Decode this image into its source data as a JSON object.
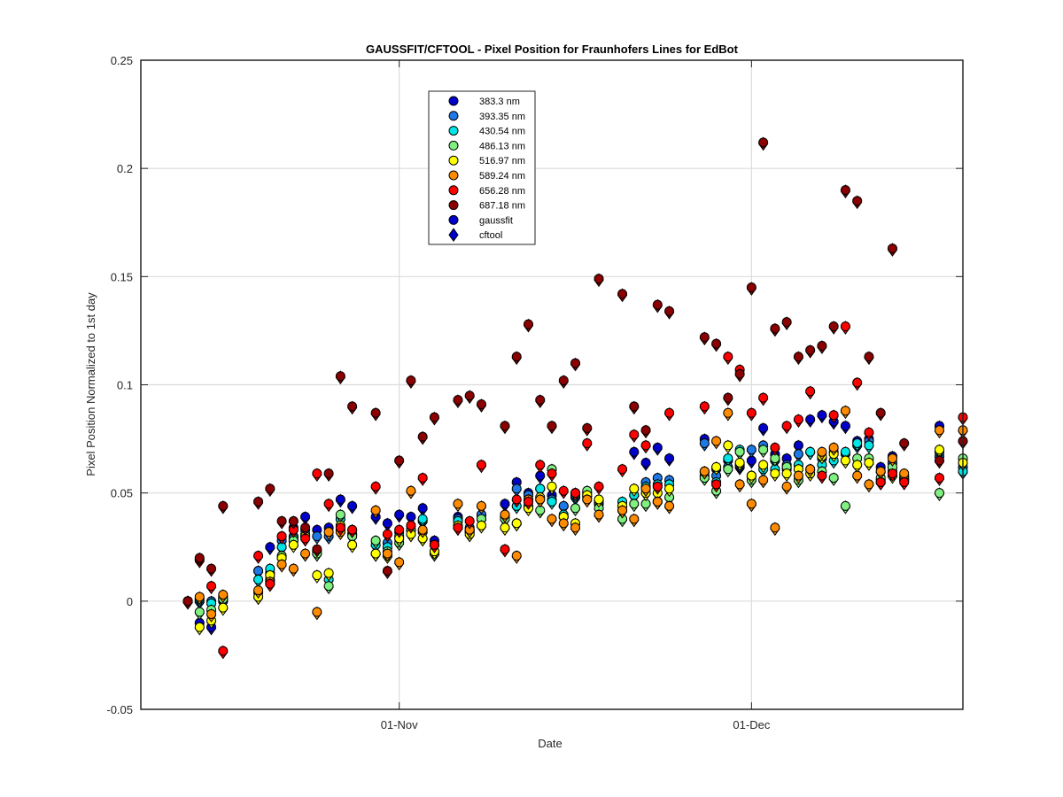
{
  "chart_data": {
    "type": "scatter",
    "title": "GAUSSFIT/CFTOOL - Pixel Position for Fraunhofers Lines for EdBot",
    "xlabel": "Date",
    "ylabel": "Pixel Position Normalized to 1st day",
    "x_unit": "date",
    "xlim": [
      "2016-10-10",
      "2016-12-19"
    ],
    "ylim": [
      -0.05,
      0.25
    ],
    "x_ticks": [
      {
        "date": "2016-11-01",
        "label": "01-Nov"
      },
      {
        "date": "2016-12-01",
        "label": "01-Dec"
      }
    ],
    "y_ticks": [
      "-0.05",
      "0",
      "0.05",
      "0.1",
      "0.15",
      "0.2",
      "0.25"
    ],
    "grid": true,
    "legend_position": "top-left-center",
    "legend": [
      {
        "label": "383.3 nm",
        "color": "#0000cc",
        "marker": "circle"
      },
      {
        "label": "393.35 nm",
        "color": "#1e78e6",
        "marker": "circle"
      },
      {
        "label": "430.54 nm",
        "color": "#00e6e6",
        "marker": "circle"
      },
      {
        "label": "486.13 nm",
        "color": "#80f080",
        "marker": "circle"
      },
      {
        "label": "516.97 nm",
        "color": "#ffff00",
        "marker": "circle"
      },
      {
        "label": "589.24 nm",
        "color": "#ff8c00",
        "marker": "circle"
      },
      {
        "label": "656.28 nm",
        "color": "#ff0000",
        "marker": "circle"
      },
      {
        "label": "687.18 nm",
        "color": "#8b0000",
        "marker": "circle"
      },
      {
        "label": "gaussfit",
        "color": "#0000cc",
        "marker": "circle"
      },
      {
        "label": "cftool",
        "color": "#0000cc",
        "marker": "diamond"
      }
    ],
    "dates": [
      "2016-10-14",
      "2016-10-15",
      "2016-10-16",
      "2016-10-17",
      "2016-10-20",
      "2016-10-21",
      "2016-10-22",
      "2016-10-23",
      "2016-10-24",
      "2016-10-25",
      "2016-10-26",
      "2016-10-27",
      "2016-10-28",
      "2016-10-30",
      "2016-10-31",
      "2016-11-01",
      "2016-11-02",
      "2016-11-03",
      "2016-11-04",
      "2016-11-06",
      "2016-11-07",
      "2016-11-08",
      "2016-11-10",
      "2016-11-11",
      "2016-11-12",
      "2016-11-13",
      "2016-11-14",
      "2016-11-15",
      "2016-11-16",
      "2016-11-17",
      "2016-11-18",
      "2016-11-20",
      "2016-11-21",
      "2016-11-22",
      "2016-11-23",
      "2016-11-24",
      "2016-11-27",
      "2016-11-28",
      "2016-11-29",
      "2016-11-30",
      "2016-12-01",
      "2016-12-02",
      "2016-12-03",
      "2016-12-04",
      "2016-12-05",
      "2016-12-06",
      "2016-12-07",
      "2016-12-08",
      "2016-12-09",
      "2016-12-10",
      "2016-12-11",
      "2016-12-12",
      "2016-12-13",
      "2016-12-14",
      "2016-12-17",
      "2016-12-19"
    ],
    "series": [
      {
        "name": "383.3 nm",
        "values": [
          0.0,
          -0.01,
          -0.012,
          0.002,
          0.014,
          0.025,
          0.03,
          0.034,
          0.039,
          0.033,
          0.034,
          0.047,
          0.044,
          0.039,
          0.036,
          0.04,
          0.039,
          0.043,
          0.028,
          0.039,
          0.033,
          0.04,
          0.045,
          0.055,
          0.05,
          0.058,
          0.049,
          0.044,
          0.05,
          0.048,
          0.046,
          0.044,
          0.069,
          0.064,
          0.071,
          0.066,
          0.075,
          0.061,
          0.065,
          0.062,
          0.065,
          0.08,
          0.068,
          0.066,
          0.072,
          0.084,
          0.086,
          0.083,
          0.081,
          0.074,
          0.075,
          0.062,
          0.067,
          0.056,
          0.081,
          0.06
        ]
      },
      {
        "name": "393.35 nm",
        "values": [
          0.0,
          0.0,
          0.0,
          0.0,
          0.014,
          0.013,
          0.028,
          0.03,
          0.033,
          0.03,
          0.03,
          0.033,
          0.031,
          0.022,
          0.027,
          0.032,
          0.033,
          0.037,
          0.026,
          0.038,
          0.034,
          0.04,
          0.04,
          0.052,
          0.049,
          0.052,
          0.047,
          0.044,
          0.048,
          0.049,
          0.045,
          0.042,
          0.049,
          0.055,
          0.057,
          0.056,
          0.073,
          0.058,
          0.062,
          0.063,
          0.07,
          0.072,
          0.065,
          0.063,
          0.068,
          0.069,
          0.066,
          0.069,
          0.068,
          0.072,
          0.074,
          0.06,
          0.064,
          0.057,
          0.067,
          0.062
        ]
      },
      {
        "name": "430.54 nm",
        "values": [
          0.0,
          0.001,
          -0.001,
          0.001,
          0.01,
          0.015,
          0.025,
          0.029,
          0.031,
          0.023,
          0.01,
          0.038,
          0.031,
          0.026,
          0.025,
          0.03,
          0.033,
          0.038,
          0.023,
          0.037,
          0.032,
          0.038,
          0.039,
          0.044,
          0.047,
          0.052,
          0.046,
          0.04,
          0.049,
          0.05,
          0.046,
          0.046,
          0.049,
          0.053,
          0.054,
          0.054,
          0.058,
          0.055,
          0.066,
          0.07,
          0.058,
          0.061,
          0.061,
          0.061,
          0.063,
          0.069,
          0.063,
          0.065,
          0.069,
          0.073,
          0.072,
          0.056,
          0.06,
          0.056,
          0.069,
          0.06
        ]
      },
      {
        "name": "486.13 nm",
        "values": [
          0.0,
          -0.005,
          -0.004,
          0.001,
          0.004,
          0.01,
          0.021,
          0.028,
          0.03,
          0.022,
          0.007,
          0.04,
          0.03,
          0.028,
          0.023,
          0.027,
          0.033,
          0.032,
          0.022,
          0.034,
          0.032,
          0.038,
          0.038,
          0.036,
          0.044,
          0.042,
          0.061,
          0.039,
          0.043,
          0.051,
          0.043,
          0.038,
          0.045,
          0.045,
          0.046,
          0.048,
          0.057,
          0.051,
          0.061,
          0.069,
          0.056,
          0.07,
          0.066,
          0.062,
          0.056,
          0.061,
          0.06,
          0.057,
          0.044,
          0.066,
          0.066,
          0.057,
          0.062,
          0.057,
          0.05,
          0.066
        ]
      },
      {
        "name": "516.97 nm",
        "values": [
          0.0,
          -0.012,
          -0.009,
          -0.003,
          0.002,
          0.012,
          0.02,
          0.026,
          0.03,
          0.012,
          0.013,
          0.035,
          0.026,
          0.022,
          0.021,
          0.029,
          0.031,
          0.029,
          0.023,
          0.035,
          0.031,
          0.035,
          0.034,
          0.036,
          0.043,
          0.048,
          0.053,
          0.039,
          0.036,
          0.049,
          0.047,
          0.044,
          0.052,
          0.05,
          0.05,
          0.052,
          0.06,
          0.062,
          0.072,
          0.064,
          0.058,
          0.063,
          0.059,
          0.059,
          0.061,
          0.059,
          0.067,
          0.068,
          0.065,
          0.063,
          0.064,
          0.055,
          0.058,
          0.058,
          0.07,
          0.064
        ]
      },
      {
        "name": "589.24 nm",
        "values": [
          0.0,
          0.002,
          -0.006,
          0.003,
          0.005,
          0.009,
          0.017,
          0.015,
          0.022,
          -0.005,
          0.032,
          0.032,
          0.033,
          0.042,
          0.022,
          0.018,
          0.051,
          0.033,
          0.026,
          0.045,
          0.033,
          0.044,
          0.04,
          0.021,
          0.047,
          0.047,
          0.038,
          0.036,
          0.034,
          0.047,
          0.04,
          0.042,
          0.038,
          0.052,
          0.046,
          0.044,
          0.06,
          0.074,
          0.087,
          0.054,
          0.045,
          0.056,
          0.034,
          0.053,
          0.058,
          0.061,
          0.069,
          0.071,
          0.088,
          0.058,
          0.054,
          0.06,
          0.066,
          0.059,
          0.079,
          0.079
        ]
      },
      {
        "name": "656.28 nm",
        "values": [
          0.0,
          0.019,
          0.007,
          -0.023,
          0.021,
          0.008,
          0.03,
          0.033,
          0.029,
          0.059,
          0.045,
          0.034,
          0.033,
          0.053,
          0.031,
          0.033,
          0.035,
          0.057,
          0.026,
          0.034,
          0.037,
          0.063,
          0.024,
          0.047,
          0.046,
          0.063,
          0.059,
          0.051,
          0.05,
          0.073,
          0.053,
          0.061,
          0.077,
          0.072,
          0.053,
          0.087,
          0.09,
          0.054,
          0.113,
          0.107,
          0.087,
          0.094,
          0.071,
          0.081,
          0.084,
          0.097,
          0.058,
          0.086,
          0.127,
          0.101,
          0.078,
          0.055,
          0.059,
          0.055,
          0.057,
          0.085
        ]
      },
      {
        "name": "687.18 nm",
        "values": [
          0.0,
          0.02,
          0.015,
          0.044,
          0.046,
          0.052,
          0.037,
          0.037,
          0.034,
          0.024,
          0.059,
          0.104,
          0.09,
          0.087,
          0.014,
          0.065,
          0.102,
          0.076,
          0.085,
          0.093,
          0.095,
          0.091,
          0.081,
          0.113,
          0.128,
          0.093,
          0.081,
          0.102,
          0.11,
          0.08,
          0.149,
          0.142,
          0.09,
          0.079,
          0.137,
          0.134,
          0.122,
          0.119,
          0.094,
          0.105,
          0.145,
          0.212,
          0.126,
          0.129,
          0.113,
          0.116,
          0.118,
          0.127,
          0.19,
          0.185,
          0.113,
          0.087,
          0.163,
          0.073,
          0.065,
          0.074
        ]
      }
    ]
  }
}
